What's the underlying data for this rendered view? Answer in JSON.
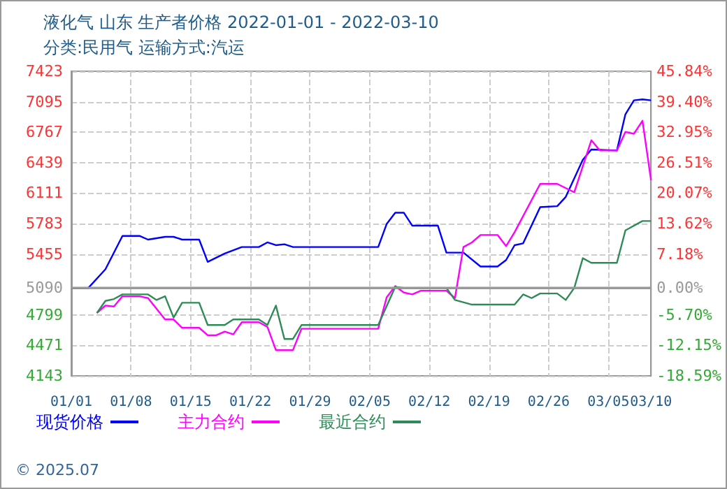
{
  "chart_data": {
    "type": "line",
    "title": "液化气 山东 生产者价格 2022-01-01 - 2022-03-10",
    "subtitle": "分类:民用气 运输方式:汽运",
    "annotations": [
      "© 2025.07"
    ],
    "xlim": [
      "2022-01-01",
      "2022-03-10"
    ],
    "xticks": [
      {
        "value": "2022-01-01",
        "label": "01/01"
      },
      {
        "value": "2022-01-08",
        "label": "01/08"
      },
      {
        "value": "2022-01-15",
        "label": "01/15"
      },
      {
        "value": "2022-01-22",
        "label": "01/22"
      },
      {
        "value": "2022-01-29",
        "label": "01/29"
      },
      {
        "value": "2022-02-05",
        "label": "02/05"
      },
      {
        "value": "2022-02-12",
        "label": "02/12"
      },
      {
        "value": "2022-02-19",
        "label": "02/19"
      },
      {
        "value": "2022-02-26",
        "label": "02/26"
      },
      {
        "value": "2022-03-05",
        "label": "03/05"
      },
      {
        "value": "2022-03-10",
        "label": "03/10"
      }
    ],
    "ylim": [
      4143,
      7423
    ],
    "yticks": [
      4143,
      4471,
      4799,
      5090,
      5455,
      5783,
      6111,
      6439,
      6767,
      7095,
      7423
    ],
    "y2lim": [
      -18.59,
      45.84
    ],
    "y2ticks": [
      {
        "value": -18.59,
        "label": "-18.59%"
      },
      {
        "value": -12.15,
        "label": "-12.15%"
      },
      {
        "value": -5.7,
        "label": "-5.70%"
      },
      {
        "value": 0,
        "label": "0.00%"
      },
      {
        "value": 7.18,
        "label": "7.18%"
      },
      {
        "value": 13.62,
        "label": "13.62%"
      },
      {
        "value": 20.07,
        "label": "20.07%"
      },
      {
        "value": 26.51,
        "label": "26.51%"
      },
      {
        "value": 32.95,
        "label": "32.95%"
      },
      {
        "value": 39.4,
        "label": "39.40%"
      },
      {
        "value": 45.84,
        "label": "45.84%"
      }
    ],
    "ref_lines": [
      {
        "axis": "y",
        "value": 5090,
        "color": "#999999"
      }
    ],
    "grid": true,
    "legend": "bottom",
    "marker": "none",
    "line_style": "solid",
    "series": [
      {
        "name": "现货价格",
        "color": "#0000ff",
        "x": [
          "2022-01-01",
          "2022-01-03",
          "2022-01-05",
          "2022-01-07",
          "2022-01-09",
          "2022-01-10",
          "2022-01-12",
          "2022-01-13",
          "2022-01-14",
          "2022-01-16",
          "2022-01-17",
          "2022-01-19",
          "2022-01-21",
          "2022-01-23",
          "2022-01-24",
          "2022-01-25",
          "2022-01-26",
          "2022-01-27",
          "2022-02-06",
          "2022-02-07",
          "2022-02-08",
          "2022-02-09",
          "2022-02-10",
          "2022-02-13",
          "2022-02-14",
          "2022-02-16",
          "2022-02-18",
          "2022-02-20",
          "2022-02-21",
          "2022-02-22",
          "2022-02-23",
          "2022-02-25",
          "2022-02-27",
          "2022-02-28",
          "2022-03-02",
          "2022-03-03",
          "2022-03-06",
          "2022-03-07",
          "2022-03-08",
          "2022-03-09",
          "2022-03-10"
        ],
        "values": [
          5090,
          5090,
          5290,
          5650,
          5650,
          5610,
          5640,
          5640,
          5610,
          5610,
          5370,
          5460,
          5530,
          5530,
          5580,
          5550,
          5560,
          5530,
          5530,
          5780,
          5900,
          5900,
          5760,
          5760,
          5470,
          5470,
          5320,
          5320,
          5390,
          5550,
          5570,
          5960,
          5970,
          6070,
          6470,
          6580,
          6570,
          6960,
          7110,
          7120,
          7110
        ]
      },
      {
        "name": "主力合约",
        "color": "#ff00ff",
        "x": [
          "2022-01-04",
          "2022-01-05",
          "2022-01-06",
          "2022-01-07",
          "2022-01-09",
          "2022-01-10",
          "2022-01-12",
          "2022-01-13",
          "2022-01-14",
          "2022-01-16",
          "2022-01-17",
          "2022-01-18",
          "2022-01-19",
          "2022-01-20",
          "2022-01-21",
          "2022-01-23",
          "2022-01-24",
          "2022-01-25",
          "2022-01-27",
          "2022-01-28",
          "2022-02-06",
          "2022-02-07",
          "2022-02-08",
          "2022-02-09",
          "2022-02-10",
          "2022-02-11",
          "2022-02-14",
          "2022-02-15",
          "2022-02-16",
          "2022-02-17",
          "2022-02-18",
          "2022-02-20",
          "2022-02-21",
          "2022-02-22",
          "2022-02-25",
          "2022-02-27",
          "2022-03-01",
          "2022-03-03",
          "2022-03-04",
          "2022-03-06",
          "2022-03-07",
          "2022-03-08",
          "2022-03-09",
          "2022-03-10"
        ],
        "values": [
          4820,
          4900,
          4890,
          5000,
          5000,
          4980,
          4750,
          4750,
          4660,
          4660,
          4580,
          4580,
          4620,
          4590,
          4720,
          4720,
          4670,
          4420,
          4420,
          4650,
          4650,
          4990,
          5110,
          5040,
          5020,
          5060,
          5060,
          4980,
          5530,
          5580,
          5660,
          5660,
          5540,
          5690,
          6210,
          6210,
          6120,
          6680,
          6570,
          6570,
          6770,
          6750,
          6890,
          6250
        ]
      },
      {
        "name": "最近合约",
        "color": "#2e8b57",
        "x": [
          "2022-01-04",
          "2022-01-05",
          "2022-01-06",
          "2022-01-07",
          "2022-01-10",
          "2022-01-11",
          "2022-01-12",
          "2022-01-13",
          "2022-01-14",
          "2022-01-16",
          "2022-01-17",
          "2022-01-19",
          "2022-01-20",
          "2022-01-23",
          "2022-01-24",
          "2022-01-25",
          "2022-01-26",
          "2022-01-27",
          "2022-01-28",
          "2022-02-06",
          "2022-02-08",
          "2022-02-09",
          "2022-02-10",
          "2022-02-14",
          "2022-02-15",
          "2022-02-17",
          "2022-02-22",
          "2022-02-23",
          "2022-02-24",
          "2022-02-25",
          "2022-02-27",
          "2022-02-28",
          "2022-03-01",
          "2022-03-02",
          "2022-03-03",
          "2022-03-06",
          "2022-03-07",
          "2022-03-09",
          "2022-03-10"
        ],
        "values": [
          4820,
          4950,
          4970,
          5020,
          5020,
          4960,
          5000,
          4770,
          4930,
          4930,
          4690,
          4690,
          4750,
          4750,
          4690,
          4900,
          4540,
          4540,
          4690,
          4690,
          5100,
          5090,
          5090,
          5090,
          4960,
          4910,
          4910,
          5020,
          4980,
          5030,
          5030,
          4960,
          5090,
          5410,
          5360,
          5360,
          5710,
          5810,
          5810
        ]
      }
    ]
  }
}
